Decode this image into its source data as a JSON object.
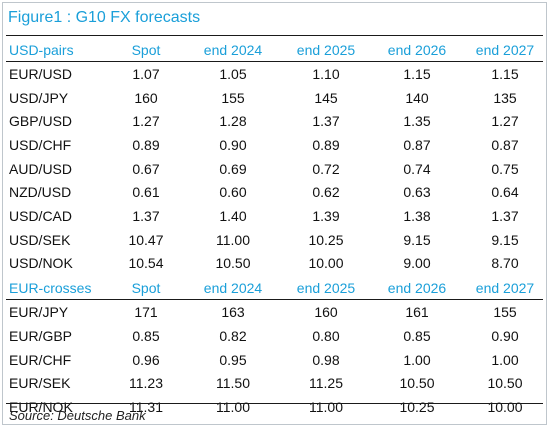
{
  "title": "Figure1 : G10 FX forecasts",
  "sections": [
    {
      "header": [
        "USD-pairs",
        "Spot",
        "end 2024",
        "end 2025",
        "end 2026",
        "end 2027"
      ],
      "rows": [
        [
          "EUR/USD",
          "1.07",
          "1.05",
          "1.10",
          "1.15",
          "1.15"
        ],
        [
          "USD/JPY",
          "160",
          "155",
          "145",
          "140",
          "135"
        ],
        [
          "GBP/USD",
          "1.27",
          "1.28",
          "1.37",
          "1.35",
          "1.27"
        ],
        [
          "USD/CHF",
          "0.89",
          "0.90",
          "0.89",
          "0.87",
          "0.87"
        ],
        [
          "AUD/USD",
          "0.67",
          "0.69",
          "0.72",
          "0.74",
          "0.75"
        ],
        [
          "NZD/USD",
          "0.61",
          "0.60",
          "0.62",
          "0.63",
          "0.64"
        ],
        [
          "USD/CAD",
          "1.37",
          "1.40",
          "1.39",
          "1.38",
          "1.37"
        ],
        [
          "USD/SEK",
          "10.47",
          "11.00",
          "10.25",
          "9.15",
          "9.15"
        ],
        [
          "USD/NOK",
          "10.54",
          "10.50",
          "10.00",
          "9.00",
          "8.70"
        ]
      ]
    },
    {
      "header": [
        "EUR-crosses",
        "Spot",
        "end 2024",
        "end 2025",
        "end 2026",
        "end 2027"
      ],
      "rows": [
        [
          "EUR/JPY",
          "171",
          "163",
          "160",
          "161",
          "155"
        ],
        [
          "EUR/GBP",
          "0.85",
          "0.82",
          "0.80",
          "0.85",
          "0.90"
        ],
        [
          "EUR/CHF",
          "0.96",
          "0.95",
          "0.98",
          "1.00",
          "1.00"
        ],
        [
          "EUR/SEK",
          "11.23",
          "11.50",
          "11.25",
          "10.50",
          "10.50"
        ],
        [
          "EUR/NOK",
          "11.31",
          "11.00",
          "11.00",
          "10.25",
          "10.00"
        ]
      ]
    }
  ],
  "source": "Source: Deutsche Bank",
  "colors": {
    "accent": "#1a9fd9",
    "text": "#111111",
    "rule": "#1a1a1a"
  }
}
